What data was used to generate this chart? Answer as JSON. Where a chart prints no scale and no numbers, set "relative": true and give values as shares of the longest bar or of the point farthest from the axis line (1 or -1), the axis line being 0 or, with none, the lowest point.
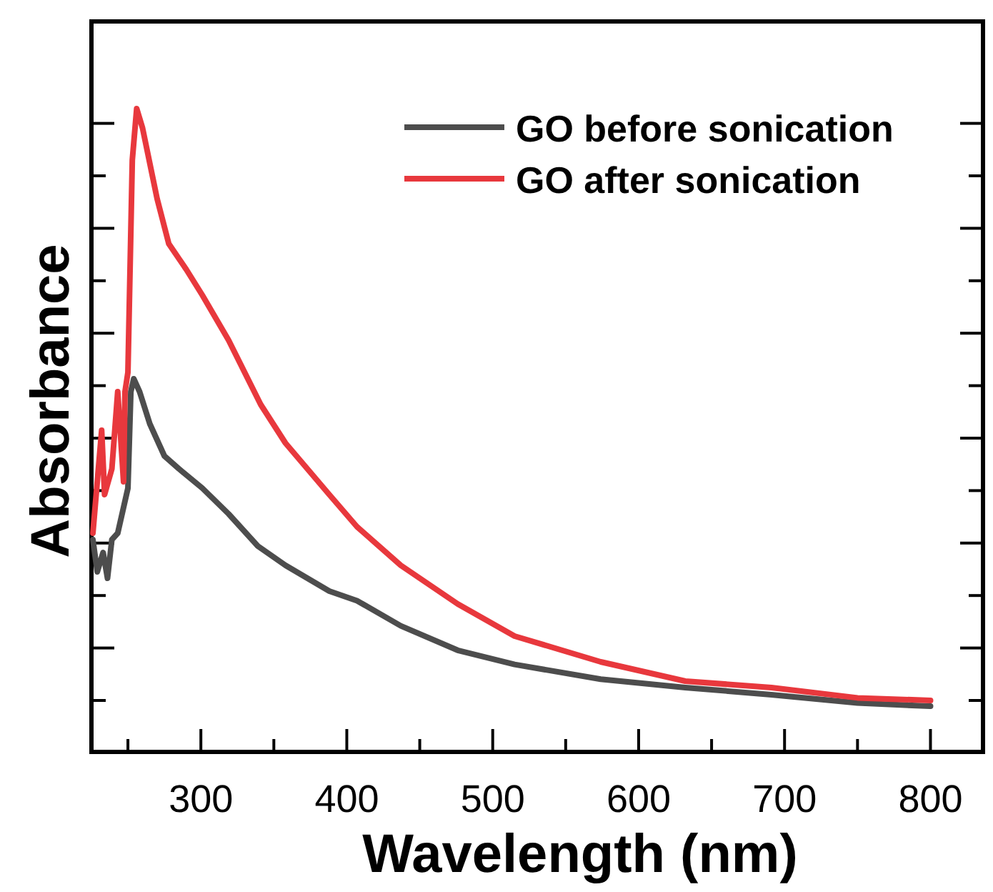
{
  "chart_data": {
    "type": "line",
    "xlabel": "Wavelength (nm)",
    "ylabel": "Absorbance",
    "relative": true,
    "xlim": [
      225,
      836
    ],
    "xticks": [
      {
        "value": 250,
        "label": null
      },
      300,
      {
        "value": 350,
        "label": null
      },
      400,
      {
        "value": 450,
        "label": null
      },
      500,
      {
        "value": 550,
        "label": null
      },
      600,
      {
        "value": 650,
        "label": null
      },
      700,
      {
        "value": 750,
        "label": null
      },
      800
    ],
    "legend": "top right",
    "marker": "none",
    "line_style": "solid",
    "series": [
      {
        "name": "GO before sonication",
        "color": "#4d4d4d",
        "x": [
          226,
          229,
          233,
          236,
          239,
          243,
          247,
          250,
          252,
          254,
          258,
          265,
          275,
          285,
          301,
          319,
          339,
          358,
          388,
          407,
          437,
          476,
          515,
          574,
          632,
          691,
          750,
          800
        ],
        "values": [
          0.33,
          0.28,
          0.31,
          0.27,
          0.33,
          0.34,
          0.38,
          0.41,
          0.56,
          0.58,
          0.56,
          0.51,
          0.46,
          0.44,
          0.41,
          0.37,
          0.32,
          0.29,
          0.25,
          0.235,
          0.196,
          0.158,
          0.136,
          0.113,
          0.1,
          0.089,
          0.076,
          0.071
        ]
      },
      {
        "name": "GO after sonication",
        "color": "#e8383d",
        "x": [
          226,
          232,
          234,
          239,
          243,
          247,
          248,
          250,
          253,
          256,
          260,
          270,
          278,
          290,
          301,
          319,
          341,
          358,
          388,
          407,
          437,
          476,
          515,
          574,
          632,
          691,
          750,
          800
        ],
        "values": [
          0.34,
          0.5,
          0.4,
          0.44,
          0.56,
          0.42,
          0.56,
          0.59,
          0.92,
          1.0,
          0.97,
          0.86,
          0.79,
          0.75,
          0.71,
          0.64,
          0.54,
          0.48,
          0.4,
          0.35,
          0.29,
          0.23,
          0.18,
          0.14,
          0.11,
          0.1,
          0.084,
          0.08
        ]
      }
    ]
  }
}
